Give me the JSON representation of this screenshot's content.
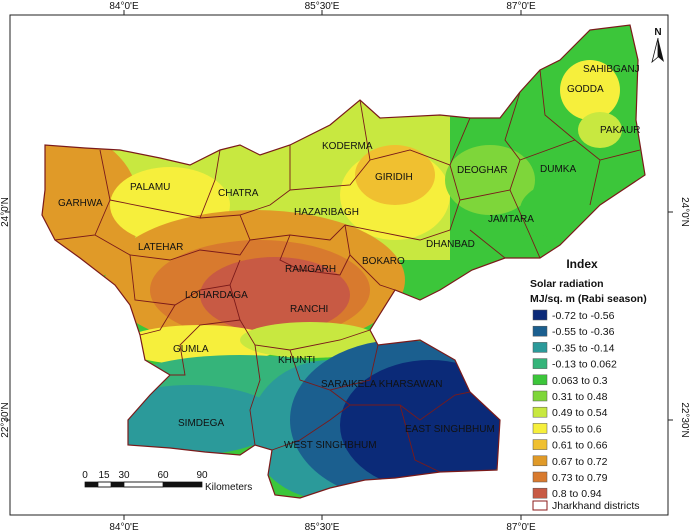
{
  "axes": {
    "top_ticks": [
      "84°0'E",
      "85°30'E",
      "87°0'E"
    ],
    "bottom_ticks": [
      "84°0'E",
      "85°30'E",
      "87°0'E"
    ],
    "left_ticks": [
      "24°0'N",
      "22°30'N"
    ],
    "right_ticks": [
      "24°0'N",
      "22°30'N"
    ]
  },
  "north_arrow": {
    "label": "N",
    "icon": "north-arrow-icon"
  },
  "legend": {
    "title": "Index",
    "subtitle1": "Solar radiation",
    "subtitle2": "MJ/sq. m (Rabi season)",
    "classes": [
      {
        "label": "-0.72 to -0.56",
        "color": "#0b2a78"
      },
      {
        "label": "-0.55 to -0.36",
        "color": "#1b5f8f"
      },
      {
        "label": "-0.35 to -0.14",
        "color": "#2b9a9a"
      },
      {
        "label": "-0.13 to 0.062",
        "color": "#35b47a"
      },
      {
        "label": "0.063 to 0.3",
        "color": "#3cc63a"
      },
      {
        "label": "0.31 to 0.48",
        "color": "#7ed63a"
      },
      {
        "label": "0.49 to 0.54",
        "color": "#c8e840"
      },
      {
        "label": "0.55 to 0.6",
        "color": "#f6ef3c"
      },
      {
        "label": "0.61 to 0.66",
        "color": "#f0c030"
      },
      {
        "label": "0.67 to 0.72",
        "color": "#e09a28"
      },
      {
        "label": "0.73 to 0.79",
        "color": "#d87a2e"
      },
      {
        "label": "0.8 to 0.94",
        "color": "#c85a44"
      }
    ],
    "boundary_label": "Jharkhand districts",
    "boundary_color": "#8b1a1a"
  },
  "scale_bar": {
    "ticks": [
      "0",
      "15",
      "30",
      "60",
      "90"
    ],
    "unit": "Kilometers"
  },
  "districts": [
    "SAHIBGANJ",
    "GODDA",
    "PAKAUR",
    "KODERMA",
    "PALAMU",
    "CHATRA",
    "GIRIDIH",
    "DEOGHAR",
    "DUMKA",
    "GARHWA",
    "HAZARIBAGH",
    "JAMTARA",
    "DHANBAD",
    "LATEHAR",
    "BOKARO",
    "RAMGARH",
    "LOHARDAGA",
    "RANCHI",
    "GUMLA",
    "KHUNTI",
    "SARAIKELA KHARSAWAN",
    "SIMDEGA",
    "EAST SINGHBHUM",
    "WEST SINGHBHUM"
  ]
}
